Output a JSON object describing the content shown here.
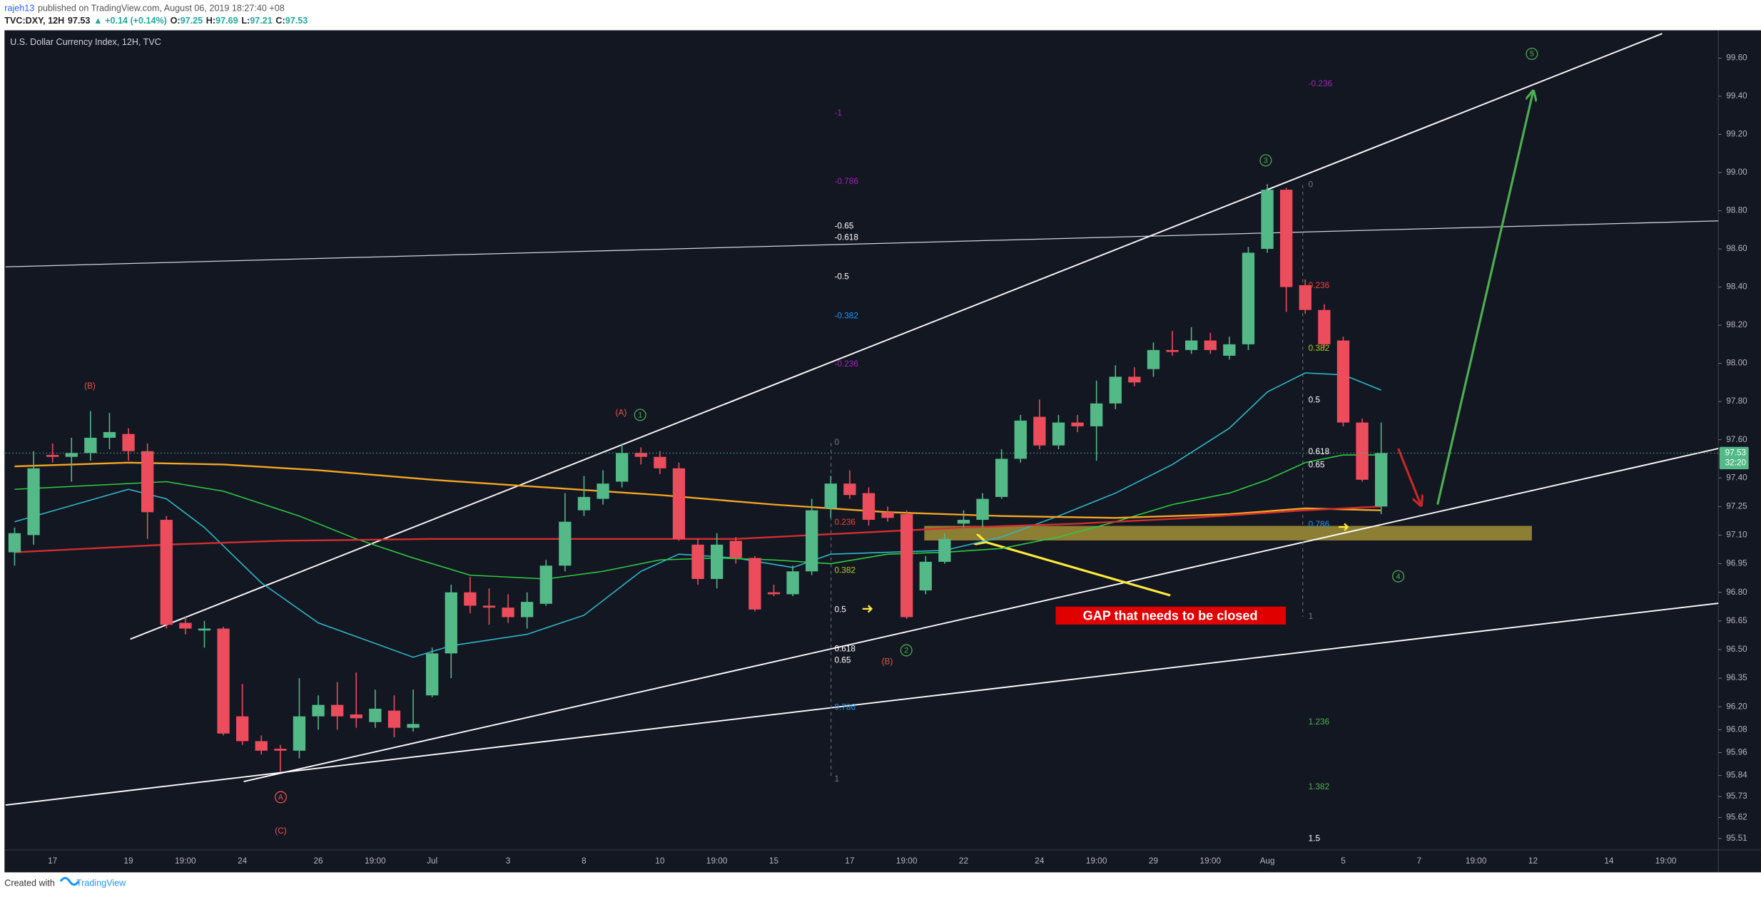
{
  "header": {
    "author": "rajeh13",
    "published": "published on TradingView.com, August 06, 2019 18:27:40 +08",
    "symbol": "TVC:DXY, 12H",
    "price": "97.53",
    "change": "▲ +0.14 (+0.14%)",
    "o_label": "O:",
    "o": "97.25",
    "h_label": "H:",
    "h": "97.69",
    "l_label": "L:",
    "l": "97.21",
    "c_label": "C:",
    "c": "97.53"
  },
  "footer": {
    "created": "Created with",
    "brand": "TradingView"
  },
  "chart_data": {
    "type": "candlestick",
    "title": "U.S. Dollar Currency Index, 12H, TVC",
    "categories": [
      null,
      null,
      "17",
      null,
      null,
      null,
      "19",
      null,
      null,
      "19:00",
      null,
      null,
      "24",
      null,
      null,
      null,
      "26",
      null,
      null,
      "19:00",
      null,
      null,
      "Jul",
      null,
      null,
      null,
      "3",
      null,
      null,
      null,
      "8",
      null,
      null,
      null,
      "10",
      null,
      null,
      "19:00",
      null,
      null,
      "15",
      null,
      null,
      null,
      "17",
      null,
      null,
      "19:00",
      null,
      null,
      "22",
      null,
      null,
      null,
      "24",
      null,
      null,
      "19:00",
      null,
      null,
      "29",
      null,
      null,
      "19:00",
      null,
      null,
      "Aug",
      null,
      null,
      null,
      "5",
      null,
      null,
      null,
      "7",
      null,
      null,
      "19:00",
      null,
      null,
      "12",
      null,
      null,
      null,
      "14",
      null,
      null,
      "19:00",
      null,
      null
    ],
    "open": [
      97.01,
      97.1,
      97.52,
      97.51,
      97.53,
      97.61,
      97.63,
      97.54,
      97.18,
      96.64,
      96.6,
      96.61,
      96.15,
      96.02,
      95.98,
      95.97,
      96.15,
      96.21,
      96.16,
      96.12,
      96.18,
      96.09,
      96.26,
      96.48,
      96.8,
      96.73,
      96.72,
      96.67,
      96.74,
      96.94,
      97.23,
      97.29,
      97.38,
      97.53,
      97.51,
      97.45,
      97.05,
      96.87,
      97.07,
      96.98,
      96.8,
      96.79,
      96.91,
      97.24,
      97.37,
      97.32,
      97.22,
      97.21,
      96.81,
      96.96,
      97.16,
      97.18,
      97.3,
      97.5,
      97.72,
      97.57,
      97.69,
      97.67,
      97.79,
      97.93,
      97.97,
      98.07,
      98.07,
      98.12,
      98.04,
      98.1,
      98.6,
      98.91,
      98.41,
      98.28,
      98.12,
      97.69,
      97.25,
      null,
      null,
      null,
      null,
      null,
      null,
      null,
      null,
      null,
      null,
      null,
      null,
      null,
      null,
      null,
      null,
      null
    ],
    "high": [
      97.14,
      97.54,
      97.58,
      97.61,
      97.75,
      97.74,
      97.66,
      97.58,
      97.2,
      96.67,
      96.65,
      96.62,
      96.32,
      96.05,
      96.0,
      96.35,
      96.26,
      96.33,
      96.38,
      96.29,
      96.26,
      96.29,
      96.51,
      96.84,
      96.88,
      96.82,
      96.79,
      96.8,
      96.97,
      97.32,
      97.41,
      97.44,
      97.58,
      97.56,
      97.54,
      97.48,
      97.08,
      97.11,
      97.09,
      96.99,
      96.84,
      96.94,
      97.29,
      97.41,
      97.44,
      97.35,
      97.25,
      97.23,
      96.99,
      97.11,
      97.23,
      97.32,
      97.55,
      97.73,
      97.81,
      97.73,
      97.73,
      97.91,
      97.99,
      97.98,
      98.11,
      98.17,
      98.19,
      98.16,
      98.14,
      98.61,
      98.94,
      98.92,
      98.44,
      98.31,
      98.14,
      97.71,
      97.69,
      null,
      null,
      null,
      null,
      null,
      null,
      null,
      null,
      null,
      null,
      null,
      null,
      null,
      null,
      null,
      null,
      null
    ],
    "low": [
      96.94,
      97.05,
      97.48,
      97.38,
      97.49,
      97.55,
      97.49,
      97.08,
      96.61,
      96.58,
      96.51,
      96.05,
      96.0,
      95.95,
      95.86,
      95.93,
      96.08,
      96.08,
      96.09,
      96.09,
      96.04,
      96.07,
      96.25,
      96.35,
      96.69,
      96.63,
      96.64,
      96.61,
      96.73,
      96.91,
      97.2,
      97.26,
      97.35,
      97.47,
      97.42,
      97.07,
      96.84,
      96.82,
      96.95,
      96.7,
      96.78,
      96.78,
      96.89,
      97.19,
      97.29,
      97.15,
      97.17,
      96.66,
      96.79,
      96.95,
      97.14,
      97.14,
      97.29,
      97.48,
      97.55,
      97.55,
      97.64,
      97.49,
      97.76,
      97.88,
      97.93,
      98.04,
      98.05,
      98.05,
      98.02,
      98.07,
      98.58,
      98.27,
      98.26,
      98.08,
      97.67,
      97.38,
      97.21,
      null,
      null,
      null,
      null,
      null,
      null,
      null,
      null,
      null,
      null,
      null,
      null,
      null,
      null,
      null,
      null,
      null
    ],
    "close": [
      97.11,
      97.45,
      97.51,
      97.53,
      97.61,
      97.64,
      97.54,
      97.22,
      96.63,
      96.61,
      96.61,
      96.06,
      96.02,
      95.97,
      95.97,
      96.15,
      96.21,
      96.15,
      96.14,
      96.19,
      96.09,
      96.11,
      96.48,
      96.8,
      96.73,
      96.72,
      96.67,
      96.75,
      96.94,
      97.17,
      97.3,
      97.37,
      97.53,
      97.51,
      97.45,
      97.08,
      96.87,
      97.05,
      96.98,
      96.71,
      96.79,
      96.91,
      97.23,
      97.37,
      97.31,
      97.18,
      97.19,
      96.67,
      96.96,
      97.08,
      97.18,
      97.29,
      97.5,
      97.7,
      97.57,
      97.69,
      97.67,
      97.79,
      97.93,
      97.9,
      98.07,
      98.06,
      98.12,
      98.07,
      98.1,
      98.58,
      98.91,
      98.4,
      98.28,
      98.1,
      97.69,
      97.39,
      97.53,
      null,
      null,
      null,
      null,
      null,
      null,
      null,
      null,
      null,
      null,
      null,
      null,
      null,
      null,
      null,
      null,
      null
    ],
    "up_color": "#53b987",
    "down_color": "#eb4d5c",
    "ylim": [
      95.45,
      99.74
    ],
    "yticks": [
      {
        "value": 99.6,
        "label": "99.60"
      },
      {
        "value": 99.4,
        "label": "99.40"
      },
      {
        "value": 99.2,
        "label": "99.20"
      },
      {
        "value": 99,
        "label": "99.00"
      },
      {
        "value": 98.8,
        "label": "98.80"
      },
      {
        "value": 98.6,
        "label": "98.60"
      },
      {
        "value": 98.4,
        "label": "98.40"
      },
      {
        "value": 98.2,
        "label": "98.20"
      },
      {
        "value": 98,
        "label": "98.00"
      },
      {
        "value": 97.8,
        "label": "97.80"
      },
      {
        "value": 97.6,
        "label": "97.60"
      },
      {
        "value": 97.4,
        "label": "97.40"
      },
      97.25,
      {
        "value": 97.1,
        "label": "97.10"
      },
      96.95,
      {
        "value": 96.8,
        "label": "96.80"
      },
      96.65,
      {
        "value": 96.5,
        "label": "96.50"
      },
      96.35,
      {
        "value": 96.2,
        "label": "96.20"
      },
      96.08,
      95.96,
      95.84,
      95.73,
      95.62,
      95.51
    ],
    "grid": false,
    "last_price": 97.53,
    "countdown": "32:20",
    "last_price_color": "#53b987",
    "indicators": [
      {
        "color": "#2fb8c9",
        "x": [
          0,
          6,
          8,
          10,
          13,
          16,
          21,
          23,
          27,
          30,
          33,
          35,
          38,
          41,
          43,
          46,
          49,
          52,
          55,
          58,
          61,
          64,
          66,
          68,
          70,
          72
        ],
        "values": [
          97.17,
          97.34,
          97.29,
          97.14,
          96.85,
          96.64,
          96.46,
          96.52,
          96.58,
          96.68,
          96.91,
          97.0,
          96.98,
          96.93,
          97.0,
          97.01,
          97.02,
          97.09,
          97.2,
          97.32,
          97.47,
          97.66,
          97.85,
          97.95,
          97.94,
          97.86
        ]
      },
      {
        "color": "#2ecc40",
        "x": [
          0,
          4,
          8,
          11,
          15,
          18,
          21,
          24,
          28,
          31,
          34,
          37,
          40,
          43,
          46,
          49,
          52,
          55,
          58,
          61,
          64,
          66,
          68,
          70,
          72
        ],
        "values": [
          97.34,
          97.36,
          97.38,
          97.33,
          97.2,
          97.08,
          96.98,
          96.89,
          96.87,
          96.91,
          96.97,
          96.98,
          96.97,
          96.95,
          97.0,
          97.01,
          97.03,
          97.09,
          97.17,
          97.26,
          97.32,
          97.39,
          97.48,
          97.52,
          97.52
        ]
      },
      {
        "color": "#f5a623",
        "x": [
          0,
          6,
          11,
          16,
          22,
          28,
          34,
          40,
          46,
          52,
          58,
          64,
          68,
          72
        ],
        "values": [
          97.46,
          97.48,
          97.47,
          97.44,
          97.39,
          97.35,
          97.31,
          97.26,
          97.22,
          97.2,
          97.19,
          97.21,
          97.24,
          97.23
        ]
      },
      {
        "color": "#d32f2f",
        "x": [
          0,
          8,
          14,
          22,
          30,
          38,
          44,
          50,
          56,
          62,
          68,
          72
        ],
        "values": [
          97.01,
          97.05,
          97.07,
          97.08,
          97.08,
          97.08,
          97.11,
          97.14,
          97.16,
          97.19,
          97.23,
          97.25
        ]
      }
    ],
    "fib_left": [
      {
        "text": "-1",
        "color": "#9c27b0"
      },
      {
        "text": "-0.786",
        "color": "#9c27b0"
      },
      {
        "text": "-0.65",
        "color": "#ffffff"
      },
      {
        "text": "-0.618",
        "color": "#ffffff"
      },
      {
        "text": "-0.5",
        "color": "#ffffff"
      },
      {
        "text": "-0.382",
        "color": "#2196f3"
      },
      {
        "text": "-0.236",
        "color": "#9c27b0"
      },
      {
        "text": "0",
        "color": "#787b86"
      },
      {
        "text": "0.236",
        "color": "#f44336"
      },
      {
        "text": "0.382",
        "color": "#b5cc18"
      },
      {
        "text": "0.5",
        "color": "#ffffff"
      },
      {
        "text": "0.618",
        "color": "#ffffff"
      },
      {
        "text": "0.65",
        "color": "#ffffff"
      },
      {
        "text": "0.786",
        "color": "#2196f3"
      },
      {
        "text": "1",
        "color": "#787b86"
      }
    ],
    "fib_right": [
      {
        "text": "-0.236",
        "color": "#9c27b0"
      },
      {
        "text": "0",
        "color": "#787b86"
      },
      {
        "text": "0.236",
        "color": "#f44336"
      },
      {
        "text": "0.382",
        "color": "#b5cc18"
      },
      {
        "text": "0.5",
        "color": "#ffffff"
      },
      {
        "text": "0.618",
        "color": "#ffffff"
      },
      {
        "text": "0.65",
        "color": "#ffffff"
      },
      {
        "text": "0.786",
        "color": "#2196f3"
      },
      {
        "text": "1",
        "color": "#787b86"
      },
      {
        "text": "1.236",
        "color": "#4caf50"
      },
      {
        "text": "1.382",
        "color": "#4caf50"
      },
      {
        "text": "1.5",
        "color": "#ffffff"
      }
    ],
    "wave_labels": [
      {
        "text": "(B)",
        "color": "#ef5350",
        "circled": false
      },
      {
        "text": "(A)",
        "color": "#ef5350",
        "circled": false
      },
      {
        "text": "1",
        "color": "#4caf50",
        "circled": true
      },
      {
        "text": "2",
        "color": "#4caf50",
        "circled": true
      },
      {
        "text": "(B)",
        "color": "#ef5350",
        "circled": false
      },
      {
        "text": "3",
        "color": "#4caf50",
        "circled": true
      },
      {
        "text": "4",
        "color": "#4caf50",
        "circled": true
      },
      {
        "text": "5",
        "color": "#4caf50",
        "circled": true
      },
      {
        "text": "A",
        "color": "#ef5350",
        "circled": true
      },
      {
        "text": "(C)",
        "color": "#ef5350",
        "circled": false
      }
    ],
    "gap_note": "GAP that needs to be closed"
  }
}
